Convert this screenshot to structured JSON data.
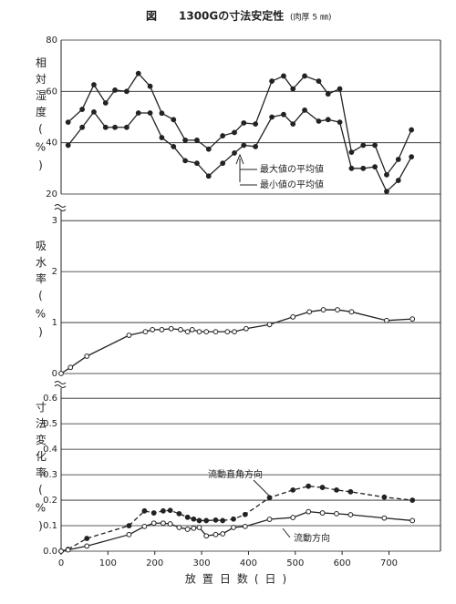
{
  "chart_data": [
    {
      "type": "line",
      "title": "図　　1300Gの寸法安定性",
      "subtitle": "(肉厚 5 ㎜)",
      "ylabel": "相対湿度(%)",
      "x": [
        15,
        45,
        70,
        95,
        115,
        140,
        165,
        190,
        215,
        240,
        265,
        290,
        315,
        345,
        370,
        390,
        415,
        450,
        475,
        495,
        520,
        550,
        570,
        595,
        620,
        645,
        670,
        695,
        720,
        748
      ],
      "series": [
        {
          "name": "最大値の平均値",
          "color": "#222",
          "marker": "filled",
          "linestyle": "solid",
          "values": [
            48,
            53,
            62.6,
            55.5,
            60.5,
            60,
            67,
            62,
            51.5,
            49,
            41,
            41,
            37.5,
            42.7,
            44,
            47.7,
            47.3,
            64,
            66,
            61,
            66,
            64,
            59,
            61,
            36.3,
            39,
            39,
            27.5,
            33.5,
            45
          ]
        },
        {
          "name": "最小値の平均値",
          "color": "#222",
          "marker": "filled",
          "linestyle": "solid",
          "values": [
            39,
            46,
            52,
            46,
            46,
            46,
            51.6,
            51.6,
            42,
            38.5,
            33,
            32,
            27,
            32,
            36,
            39,
            38.5,
            50,
            51,
            47.3,
            52.7,
            48.4,
            49,
            48,
            30,
            30,
            30.6,
            21,
            25.3,
            34.5
          ]
        }
      ],
      "xlim": [
        0,
        810
      ],
      "ylim": [
        20,
        80
      ],
      "yticks": [
        20,
        40,
        60,
        80
      ],
      "grid": true
    },
    {
      "type": "line",
      "ylabel": "吸水率(%)",
      "x": [
        0,
        20,
        55,
        145,
        180,
        195,
        215,
        235,
        255,
        270,
        280,
        295,
        310,
        330,
        355,
        370,
        395,
        445,
        495,
        530,
        560,
        590,
        620,
        695,
        750
      ],
      "series": [
        {
          "name": "吸水率",
          "color": "#222",
          "marker": "open",
          "linestyle": "solid",
          "values": [
            0,
            0.12,
            0.34,
            0.75,
            0.82,
            0.86,
            0.86,
            0.88,
            0.86,
            0.82,
            0.86,
            0.82,
            0.82,
            0.82,
            0.82,
            0.82,
            0.88,
            0.96,
            1.11,
            1.21,
            1.25,
            1.25,
            1.21,
            1.04,
            1.07
          ]
        }
      ],
      "xlim": [
        0,
        810
      ],
      "ylim": [
        0,
        3.2
      ],
      "yticks": [
        0,
        1,
        2,
        3
      ],
      "grid": true
    },
    {
      "type": "line",
      "ylabel": "寸法変化率(%)",
      "xlabel": "放置日数(日)",
      "x": [
        0,
        15,
        55,
        145,
        178,
        198,
        218,
        233,
        252,
        270,
        283,
        295,
        310,
        330,
        345,
        368,
        393,
        445,
        495,
        528,
        558,
        588,
        618,
        690,
        750
      ],
      "series": [
        {
          "name": "流動直角方向",
          "color": "#222",
          "marker": "filled",
          "linestyle": "dashed",
          "values": [
            0,
            0.007,
            0.05,
            0.1,
            0.158,
            0.15,
            0.158,
            0.16,
            0.147,
            0.133,
            0.126,
            0.12,
            0.12,
            0.122,
            0.12,
            0.126,
            0.144,
            0.21,
            0.24,
            0.255,
            0.25,
            0.24,
            0.233,
            0.212,
            0.2
          ]
        },
        {
          "name": "流動方向",
          "color": "#222",
          "marker": "open",
          "linestyle": "solid",
          "values": [
            0,
            0.005,
            0.02,
            0.065,
            0.097,
            0.11,
            0.11,
            0.107,
            0.093,
            0.086,
            0.09,
            0.093,
            0.06,
            0.065,
            0.068,
            0.093,
            0.097,
            0.125,
            0.132,
            0.155,
            0.15,
            0.147,
            0.143,
            0.13,
            0.12
          ]
        }
      ],
      "xlim": [
        0,
        810
      ],
      "ylim": [
        0,
        0.64
      ],
      "yticks": [
        {
          "value": 0,
          "label": "0.0"
        },
        0.1,
        0.2,
        0.3,
        0.4,
        0.5,
        0.6
      ],
      "xticks": [
        0,
        100,
        200,
        300,
        400,
        500,
        600,
        700
      ],
      "grid": true
    }
  ]
}
